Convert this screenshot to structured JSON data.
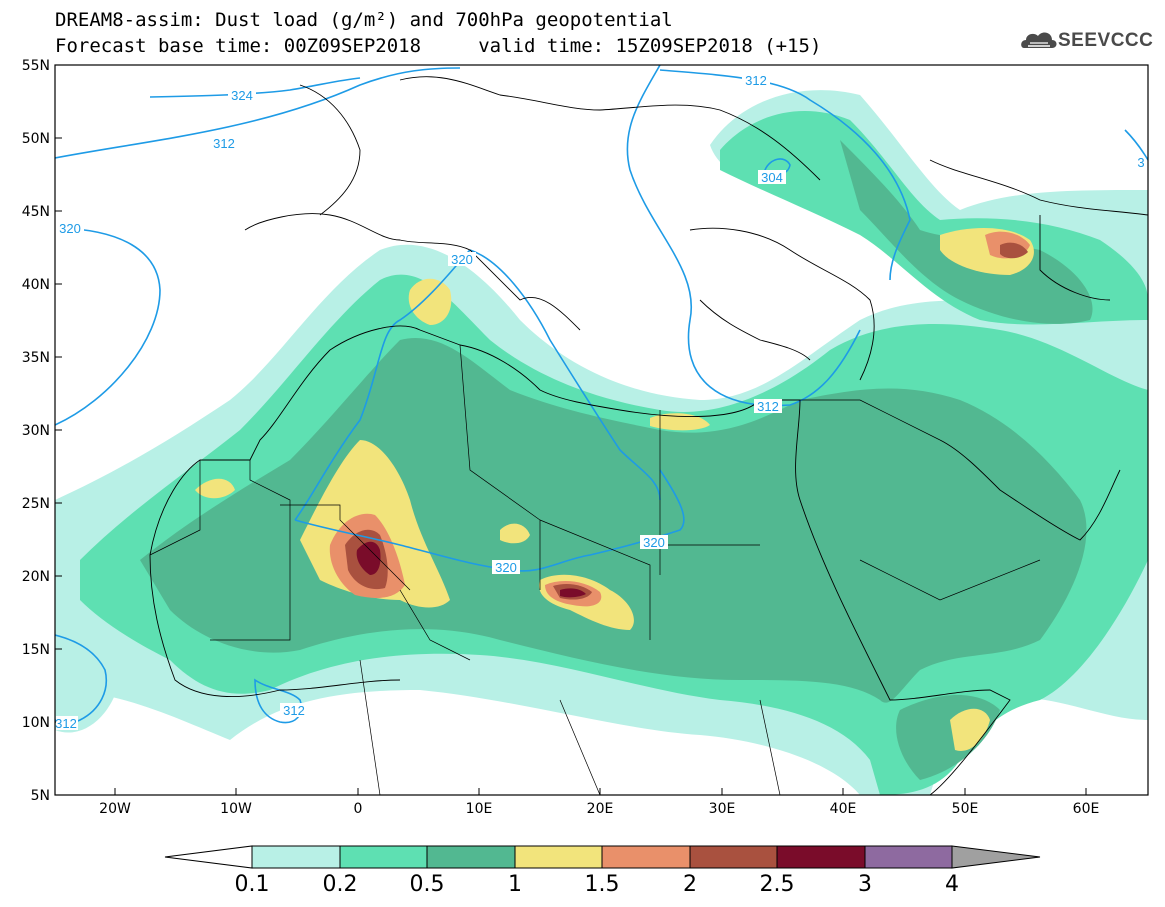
{
  "title": {
    "line1": "DREAM8-assim: Dust load (g/m²) and 700hPa geopotential",
    "line2": "Forecast base time: 00Z09SEP2018     valid time: 15Z09SEP2018 (+15)"
  },
  "logo": {
    "text": "SEEVCCC",
    "icon": "cloud-logo-icon"
  },
  "axes": {
    "lat_labels": [
      "55N",
      "50N",
      "45N",
      "40N",
      "35N",
      "30N",
      "25N",
      "20N",
      "15N",
      "10N",
      "5N"
    ],
    "lon_labels": [
      "20W",
      "10W",
      "0",
      "10E",
      "20E",
      "30E",
      "40E",
      "50E",
      "60E"
    ]
  },
  "contours": {
    "labels": [
      "324",
      "312",
      "320",
      "320",
      "312",
      "304",
      "312",
      "320",
      "320",
      "312",
      "312",
      "3"
    ]
  },
  "colorbar": {
    "levels": [
      "0.1",
      "0.2",
      "0.5",
      "1",
      "1.5",
      "2",
      "2.5",
      "3",
      "4"
    ],
    "colors": [
      "#b8f0e6",
      "#5ee0b2",
      "#52b891",
      "#f2e47c",
      "#e9906a",
      "#a9513f",
      "#7a0c2a",
      "#8e6aa0",
      "#a0a0a0"
    ],
    "under_color": "#ffffff"
  },
  "palette": {
    "land": "#ffffff",
    "contour_line": "#1e9be6",
    "border": "#000000"
  }
}
